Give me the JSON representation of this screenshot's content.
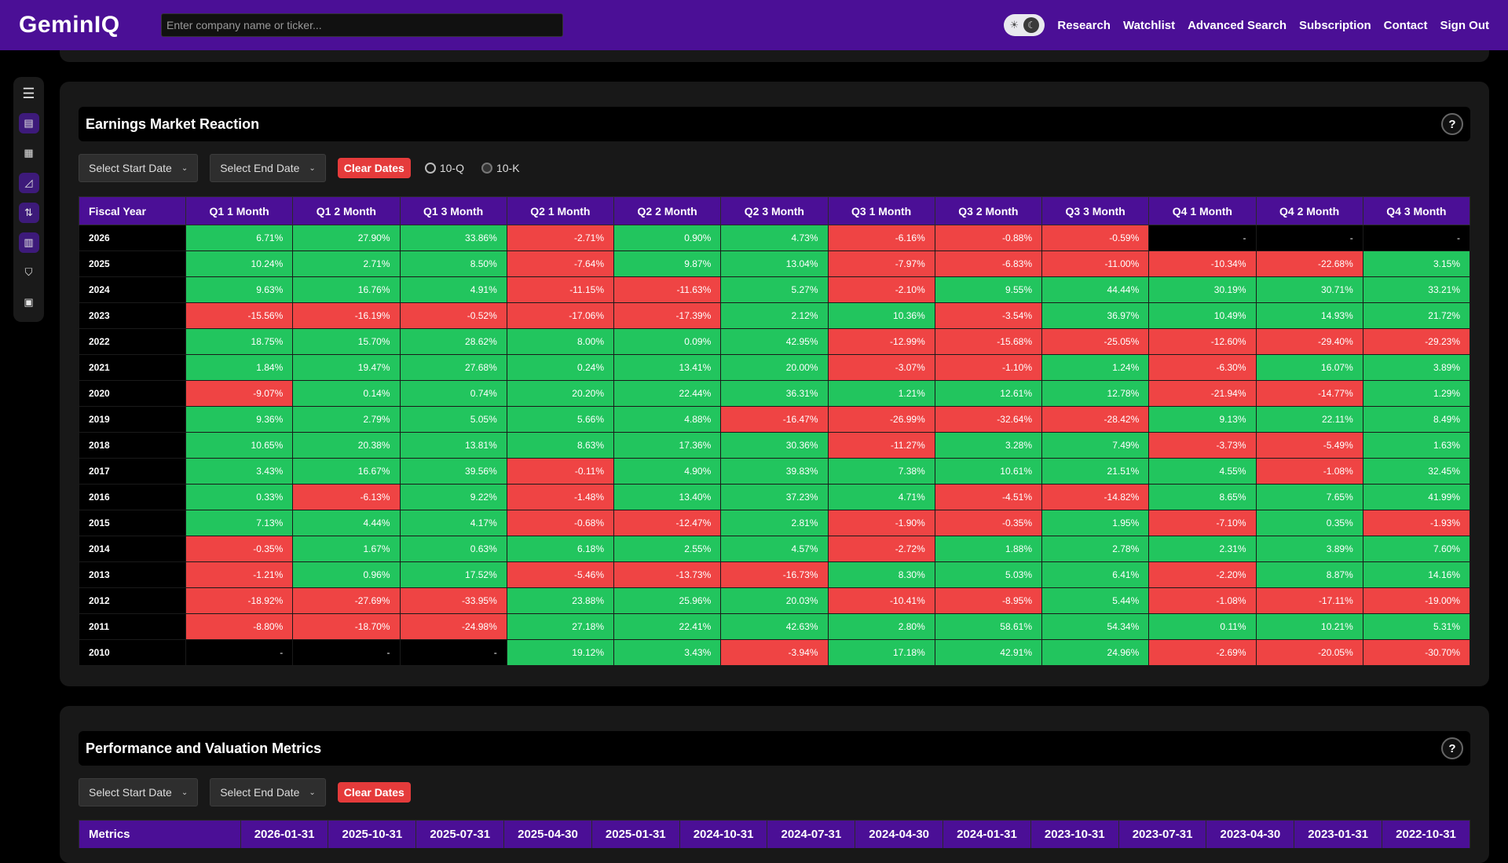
{
  "app": {
    "logo": "GeminIQ",
    "search_placeholder": "Enter company name or ticker...",
    "theme_light_icon": "sun-icon",
    "theme_dark_icon": "moon-icon",
    "nav": [
      "Research",
      "Watchlist",
      "Advanced Search",
      "Subscription",
      "Contact",
      "Sign Out"
    ]
  },
  "sidebar": {
    "icons": [
      "menu-icon",
      "document-icon",
      "table-icon",
      "chart-icon",
      "sort-arrows-icon",
      "report-icon",
      "shield-icon",
      "calculator-icon"
    ]
  },
  "earnings": {
    "title": "Earnings Market Reaction",
    "help": "?",
    "start_date": "Select Start Date",
    "end_date": "Select End Date",
    "clear": "Clear Dates",
    "radio_10q": "10-Q",
    "radio_10k": "10-K",
    "columns": [
      "Fiscal Year",
      "Q1 1 Month",
      "Q1 2 Month",
      "Q1 3 Month",
      "Q2 1 Month",
      "Q2 2 Month",
      "Q2 3 Month",
      "Q3 1 Month",
      "Q3 2 Month",
      "Q3 3 Month",
      "Q4 1 Month",
      "Q4 2 Month",
      "Q4 3 Month"
    ],
    "colors": {
      "positive": "#22c55e",
      "negative": "#ef4444",
      "empty": "#000000"
    },
    "rows": [
      {
        "year": "2026",
        "values": [
          "6.71%",
          "27.90%",
          "33.86%",
          "-2.71%",
          "0.90%",
          "4.73%",
          "-6.16%",
          "-0.88%",
          "-0.59%",
          "-",
          "-",
          "-"
        ]
      },
      {
        "year": "2025",
        "values": [
          "10.24%",
          "2.71%",
          "8.50%",
          "-7.64%",
          "9.87%",
          "13.04%",
          "-7.97%",
          "-6.83%",
          "-11.00%",
          "-10.34%",
          "-22.68%",
          "3.15%"
        ]
      },
      {
        "year": "2024",
        "values": [
          "9.63%",
          "16.76%",
          "4.91%",
          "-11.15%",
          "-11.63%",
          "5.27%",
          "-2.10%",
          "9.55%",
          "44.44%",
          "30.19%",
          "30.71%",
          "33.21%"
        ]
      },
      {
        "year": "2023",
        "values": [
          "-15.56%",
          "-16.19%",
          "-0.52%",
          "-17.06%",
          "-17.39%",
          "2.12%",
          "10.36%",
          "-3.54%",
          "36.97%",
          "10.49%",
          "14.93%",
          "21.72%"
        ]
      },
      {
        "year": "2022",
        "values": [
          "18.75%",
          "15.70%",
          "28.62%",
          "8.00%",
          "0.09%",
          "42.95%",
          "-12.99%",
          "-15.68%",
          "-25.05%",
          "-12.60%",
          "-29.40%",
          "-29.23%"
        ]
      },
      {
        "year": "2021",
        "values": [
          "1.84%",
          "19.47%",
          "27.68%",
          "0.24%",
          "13.41%",
          "20.00%",
          "-3.07%",
          "-1.10%",
          "1.24%",
          "-6.30%",
          "16.07%",
          "3.89%"
        ]
      },
      {
        "year": "2020",
        "values": [
          "-9.07%",
          "0.14%",
          "0.74%",
          "20.20%",
          "22.44%",
          "36.31%",
          "1.21%",
          "12.61%",
          "12.78%",
          "-21.94%",
          "-14.77%",
          "1.29%"
        ]
      },
      {
        "year": "2019",
        "values": [
          "9.36%",
          "2.79%",
          "5.05%",
          "5.66%",
          "4.88%",
          "-16.47%",
          "-26.99%",
          "-32.64%",
          "-28.42%",
          "9.13%",
          "22.11%",
          "8.49%"
        ]
      },
      {
        "year": "2018",
        "values": [
          "10.65%",
          "20.38%",
          "13.81%",
          "8.63%",
          "17.36%",
          "30.36%",
          "-11.27%",
          "3.28%",
          "7.49%",
          "-3.73%",
          "-5.49%",
          "1.63%"
        ]
      },
      {
        "year": "2017",
        "values": [
          "3.43%",
          "16.67%",
          "39.56%",
          "-0.11%",
          "4.90%",
          "39.83%",
          "7.38%",
          "10.61%",
          "21.51%",
          "4.55%",
          "-1.08%",
          "32.45%"
        ]
      },
      {
        "year": "2016",
        "values": [
          "0.33%",
          "-6.13%",
          "9.22%",
          "-1.48%",
          "13.40%",
          "37.23%",
          "4.71%",
          "-4.51%",
          "-14.82%",
          "8.65%",
          "7.65%",
          "41.99%"
        ]
      },
      {
        "year": "2015",
        "values": [
          "7.13%",
          "4.44%",
          "4.17%",
          "-0.68%",
          "-12.47%",
          "2.81%",
          "-1.90%",
          "-0.35%",
          "1.95%",
          "-7.10%",
          "0.35%",
          "-1.93%"
        ]
      },
      {
        "year": "2014",
        "values": [
          "-0.35%",
          "1.67%",
          "0.63%",
          "6.18%",
          "2.55%",
          "4.57%",
          "-2.72%",
          "1.88%",
          "2.78%",
          "2.31%",
          "3.89%",
          "7.60%"
        ]
      },
      {
        "year": "2013",
        "values": [
          "-1.21%",
          "0.96%",
          "17.52%",
          "-5.46%",
          "-13.73%",
          "-16.73%",
          "8.30%",
          "5.03%",
          "6.41%",
          "-2.20%",
          "8.87%",
          "14.16%"
        ]
      },
      {
        "year": "2012",
        "values": [
          "-18.92%",
          "-27.69%",
          "-33.95%",
          "23.88%",
          "25.96%",
          "20.03%",
          "-10.41%",
          "-8.95%",
          "5.44%",
          "-1.08%",
          "-17.11%",
          "-19.00%"
        ]
      },
      {
        "year": "2011",
        "values": [
          "-8.80%",
          "-18.70%",
          "-24.98%",
          "27.18%",
          "22.41%",
          "42.63%",
          "2.80%",
          "58.61%",
          "54.34%",
          "0.11%",
          "10.21%",
          "5.31%"
        ]
      },
      {
        "year": "2010",
        "values": [
          "-",
          "-",
          "-",
          "19.12%",
          "3.43%",
          "-3.94%",
          "17.18%",
          "42.91%",
          "24.96%",
          "-2.69%",
          "-20.05%",
          "-30.70%"
        ]
      }
    ]
  },
  "performance": {
    "title": "Performance and Valuation Metrics",
    "help": "?",
    "start_date": "Select Start Date",
    "end_date": "Select End Date",
    "clear": "Clear Dates",
    "columns": [
      "Metrics",
      "2026-01-31",
      "2025-10-31",
      "2025-07-31",
      "2025-04-30",
      "2025-01-31",
      "2024-10-31",
      "2024-07-31",
      "2024-04-30",
      "2024-01-31",
      "2023-10-31",
      "2023-07-31",
      "2023-04-30",
      "2023-01-31",
      "2022-10-31"
    ]
  }
}
